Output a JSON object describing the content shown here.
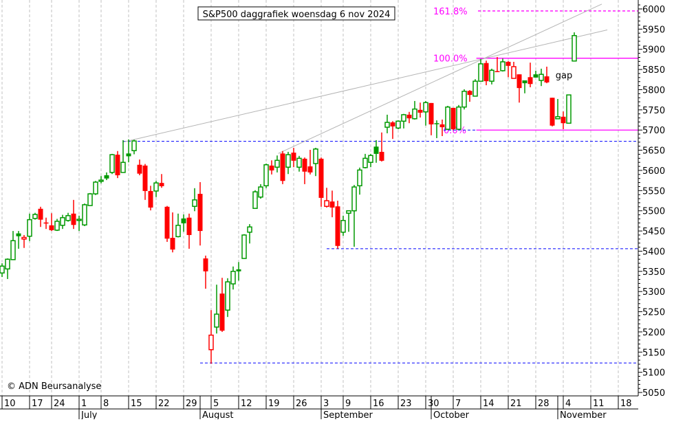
{
  "chart_data": {
    "type": "candlestick",
    "title": "S&P500 daggrafiek woensdag 6 nov 2024",
    "copyright": "© ADN Beursanalyse",
    "ylim": [
      5040,
      6015
    ],
    "y_ticks": [
      6000,
      5950,
      5900,
      5850,
      5800,
      5750,
      5700,
      5650,
      5600,
      5550,
      5500,
      5450,
      5400,
      5350,
      5300,
      5250,
      5200,
      5150,
      5100,
      5050
    ],
    "x_day_labels": [
      {
        "index": 0,
        "label": "10"
      },
      {
        "index": 5,
        "label": "17"
      },
      {
        "index": 9,
        "label": "24"
      },
      {
        "index": 14,
        "label": "1"
      },
      {
        "index": 18,
        "label": "8"
      },
      {
        "index": 23,
        "label": "15"
      },
      {
        "index": 28,
        "label": "22"
      },
      {
        "index": 33,
        "label": "29"
      },
      {
        "index": 38,
        "label": "5"
      },
      {
        "index": 43,
        "label": "12"
      },
      {
        "index": 48,
        "label": "19"
      },
      {
        "index": 53,
        "label": "26"
      },
      {
        "index": 58,
        "label": "3"
      },
      {
        "index": 62,
        "label": "9"
      },
      {
        "index": 67,
        "label": "16"
      },
      {
        "index": 72,
        "label": "23"
      },
      {
        "index": 77,
        "label": "30"
      },
      {
        "index": 82,
        "label": "7"
      },
      {
        "index": 87,
        "label": "14"
      },
      {
        "index": 92,
        "label": "21"
      },
      {
        "index": 97,
        "label": "28"
      },
      {
        "index": 102,
        "label": "4"
      },
      {
        "index": 107,
        "label": "11"
      },
      {
        "index": 112,
        "label": "18"
      }
    ],
    "x_month_labels": [
      {
        "index": 14,
        "label": "July"
      },
      {
        "index": 36,
        "label": "August"
      },
      {
        "index": 58,
        "label": "September"
      },
      {
        "index": 78,
        "label": "October"
      },
      {
        "index": 101,
        "label": "November"
      }
    ],
    "candles_ohlc": [
      [
        5346,
        5370,
        5336,
        5363
      ],
      [
        5356,
        5382,
        5331,
        5380
      ],
      [
        5379,
        5450,
        5378,
        5426
      ],
      [
        5444,
        5450,
        5406,
        5437
      ],
      [
        5430,
        5440,
        5408,
        5434
      ],
      [
        5437,
        5493,
        5425,
        5478
      ],
      [
        5481,
        5495,
        5478,
        5491
      ],
      [
        5505,
        5510,
        5460,
        5478
      ],
      [
        5471,
        5483,
        5455,
        5469
      ],
      [
        5464,
        5494,
        5450,
        5452
      ],
      [
        5452,
        5480,
        5450,
        5474
      ],
      [
        5464,
        5490,
        5455,
        5483
      ],
      [
        5476,
        5495,
        5473,
        5488
      ],
      [
        5493,
        5527,
        5455,
        5465
      ],
      [
        5476,
        5488,
        5450,
        5479
      ],
      [
        5465,
        5518,
        5462,
        5515
      ],
      [
        5513,
        5544,
        5512,
        5542
      ],
      [
        5542,
        5574,
        5539,
        5571
      ],
      [
        5573,
        5586,
        5568,
        5576
      ],
      [
        5588,
        5595,
        5576,
        5580
      ],
      [
        5595,
        5641,
        5591,
        5639
      ],
      [
        5639,
        5648,
        5581,
        5588
      ],
      [
        5595,
        5675,
        5594,
        5620
      ],
      [
        5642,
        5677,
        5620,
        5635
      ],
      [
        5649,
        5676,
        5640,
        5673
      ],
      [
        5614,
        5627,
        5588,
        5592
      ],
      [
        5612,
        5616,
        5527,
        5549
      ],
      [
        5549,
        5562,
        5501,
        5508
      ],
      [
        5549,
        5574,
        5534,
        5569
      ],
      [
        5569,
        5591,
        5557,
        5561
      ],
      [
        5510,
        5512,
        5423,
        5431
      ],
      [
        5433,
        5496,
        5397,
        5404
      ],
      [
        5436,
        5493,
        5434,
        5464
      ],
      [
        5481,
        5491,
        5448,
        5469
      ],
      [
        5483,
        5493,
        5406,
        5440
      ],
      [
        5511,
        5556,
        5499,
        5527
      ],
      [
        5542,
        5571,
        5414,
        5450
      ],
      [
        5382,
        5389,
        5307,
        5350
      ],
      [
        5156,
        5254,
        5121,
        5192
      ],
      [
        5212,
        5317,
        5196,
        5244
      ],
      [
        5295,
        5334,
        5200,
        5203
      ],
      [
        5254,
        5333,
        5237,
        5324
      ],
      [
        5319,
        5362,
        5305,
        5350
      ],
      [
        5355,
        5373,
        5327,
        5350
      ],
      [
        5382,
        5442,
        5381,
        5440
      ],
      [
        5447,
        5467,
        5419,
        5460
      ],
      [
        5506,
        5551,
        5506,
        5547
      ],
      [
        5534,
        5566,
        5530,
        5559
      ],
      [
        5562,
        5617,
        5556,
        5614
      ],
      [
        5612,
        5625,
        5590,
        5600
      ],
      [
        5608,
        5637,
        5595,
        5625
      ],
      [
        5642,
        5648,
        5566,
        5574
      ],
      [
        5608,
        5646,
        5591,
        5639
      ],
      [
        5644,
        5656,
        5608,
        5624
      ],
      [
        5608,
        5636,
        5597,
        5630
      ],
      [
        5629,
        5632,
        5566,
        5597
      ],
      [
        5610,
        5651,
        5590,
        5595
      ],
      [
        5617,
        5656,
        5586,
        5653
      ],
      [
        5629,
        5632,
        5510,
        5532
      ],
      [
        5511,
        5557,
        5508,
        5525
      ],
      [
        5523,
        5550,
        5484,
        5508
      ],
      [
        5511,
        5525,
        5406,
        5413
      ],
      [
        5447,
        5488,
        5438,
        5476
      ],
      [
        5494,
        5501,
        5448,
        5500
      ],
      [
        5500,
        5564,
        5411,
        5559
      ],
      [
        5562,
        5607,
        5540,
        5601
      ],
      [
        5607,
        5641,
        5605,
        5630
      ],
      [
        5620,
        5641,
        5608,
        5637
      ],
      [
        5659,
        5675,
        5619,
        5641
      ],
      [
        5646,
        5694,
        5622,
        5624
      ],
      [
        5707,
        5738,
        5692,
        5719
      ],
      [
        5719,
        5722,
        5678,
        5709
      ],
      [
        5705,
        5724,
        5702,
        5722
      ],
      [
        5722,
        5740,
        5704,
        5738
      ],
      [
        5738,
        5745,
        5717,
        5729
      ],
      [
        5728,
        5772,
        5726,
        5752
      ],
      [
        5750,
        5768,
        5731,
        5743
      ],
      [
        5745,
        5772,
        5711,
        5768
      ],
      [
        5767,
        5767,
        5687,
        5714
      ],
      [
        5717,
        5724,
        5680,
        5716
      ],
      [
        5714,
        5726,
        5685,
        5707
      ],
      [
        5702,
        5760,
        5700,
        5757
      ],
      [
        5755,
        5755,
        5700,
        5702
      ],
      [
        5702,
        5762,
        5700,
        5757
      ],
      [
        5757,
        5801,
        5751,
        5796
      ],
      [
        5797,
        5799,
        5770,
        5787
      ],
      [
        5784,
        5826,
        5784,
        5821
      ],
      [
        5821,
        5876,
        5821,
        5864
      ],
      [
        5866,
        5872,
        5811,
        5821
      ],
      [
        5821,
        5852,
        5813,
        5848
      ],
      [
        5846,
        5881,
        5844,
        5845
      ],
      [
        5847,
        5877,
        5845,
        5869
      ],
      [
        5869,
        5871,
        5831,
        5859
      ],
      [
        5828,
        5869,
        5828,
        5857
      ],
      [
        5838,
        5838,
        5768,
        5804
      ],
      [
        5823,
        5823,
        5791,
        5816
      ],
      [
        5831,
        5867,
        5806,
        5814
      ],
      [
        5838,
        5847,
        5830,
        5830
      ],
      [
        5823,
        5852,
        5809,
        5838
      ],
      [
        5833,
        5857,
        5816,
        5818
      ],
      [
        5780,
        5780,
        5709,
        5711
      ],
      [
        5728,
        5777,
        5728,
        5733
      ],
      [
        5733,
        5746,
        5702,
        5717
      ],
      [
        5717,
        5788,
        5716,
        5787
      ],
      [
        5871,
        5942,
        5870,
        5934
      ]
    ],
    "support_lines": [
      {
        "price": 5672,
        "from_index": 22,
        "style": "blue-dashed"
      },
      {
        "price": 5406,
        "from_index": 59,
        "style": "blue-dashed"
      },
      {
        "price": 5123,
        "from_index": 36,
        "style": "blue-dashed"
      }
    ],
    "fibonacci": [
      {
        "label": "161.8%",
        "price": 5995,
        "from_index": 86.5,
        "style": "magenta-dashed"
      },
      {
        "label": "100.0%",
        "price": 5878,
        "from_index": 86.2,
        "style": "magenta-solid"
      },
      {
        "label": "0.0%",
        "price": 5700,
        "from_index": 86.2,
        "style": "magenta-solid"
      }
    ],
    "trendlines": [
      {
        "from": [
          21.9,
          5670
        ],
        "to": [
          110,
          5948
        ]
      },
      {
        "from": [
          50.2,
          5642
        ],
        "to": [
          109,
          6012
        ]
      }
    ],
    "annotations": [
      {
        "text": "gap",
        "index": 100.6,
        "price": 5835
      }
    ],
    "colors": {
      "up": "#009900",
      "down": "#ff0000",
      "support": "#0000ff",
      "fib": "#ff00ff",
      "trend": "#b4b4b4",
      "grid": "#c0c0c0"
    }
  }
}
